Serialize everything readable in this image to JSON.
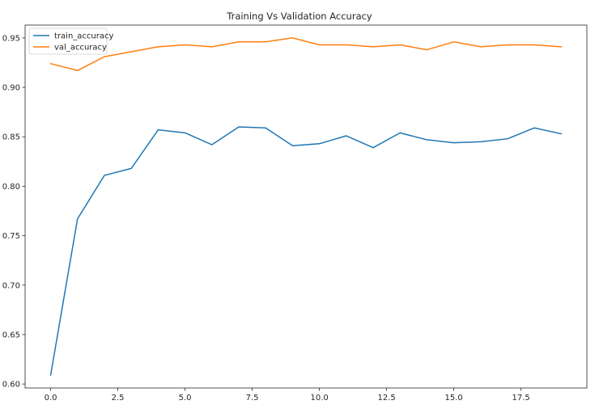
{
  "chart_data": {
    "type": "line",
    "title": "Training Vs Validation Accuracy",
    "xlabel": "",
    "ylabel": "",
    "x": [
      0,
      1,
      2,
      3,
      4,
      5,
      6,
      7,
      8,
      9,
      10,
      11,
      12,
      13,
      14,
      15,
      16,
      17,
      18,
      19
    ],
    "xlim": [
      -0.95,
      19.95
    ],
    "ylim": [
      0.596,
      0.963
    ],
    "xticks": [
      0.0,
      2.5,
      5.0,
      7.5,
      10.0,
      12.5,
      15.0,
      17.5
    ],
    "xtick_labels": [
      "0.0",
      "2.5",
      "5.0",
      "7.5",
      "10.0",
      "12.5",
      "15.0",
      "17.5"
    ],
    "yticks": [
      0.6,
      0.65,
      0.7,
      0.75,
      0.8,
      0.85,
      0.9,
      0.95
    ],
    "ytick_labels": [
      "0.60",
      "0.65",
      "0.70",
      "0.75",
      "0.80",
      "0.85",
      "0.90",
      "0.95"
    ],
    "grid": false,
    "legend_position": "top-left",
    "series": [
      {
        "name": "train_accuracy",
        "color": "#1f77b4",
        "values": [
          0.609,
          0.767,
          0.811,
          0.818,
          0.857,
          0.854,
          0.842,
          0.86,
          0.859,
          0.841,
          0.843,
          0.851,
          0.839,
          0.854,
          0.847,
          0.844,
          0.845,
          0.848,
          0.859,
          0.853
        ]
      },
      {
        "name": "val_accuracy",
        "color": "#ff7f0e",
        "values": [
          0.924,
          0.917,
          0.931,
          0.936,
          0.941,
          0.943,
          0.941,
          0.946,
          0.946,
          0.95,
          0.943,
          0.943,
          0.941,
          0.943,
          0.938,
          0.946,
          0.941,
          0.943,
          0.943,
          0.941
        ]
      }
    ]
  }
}
